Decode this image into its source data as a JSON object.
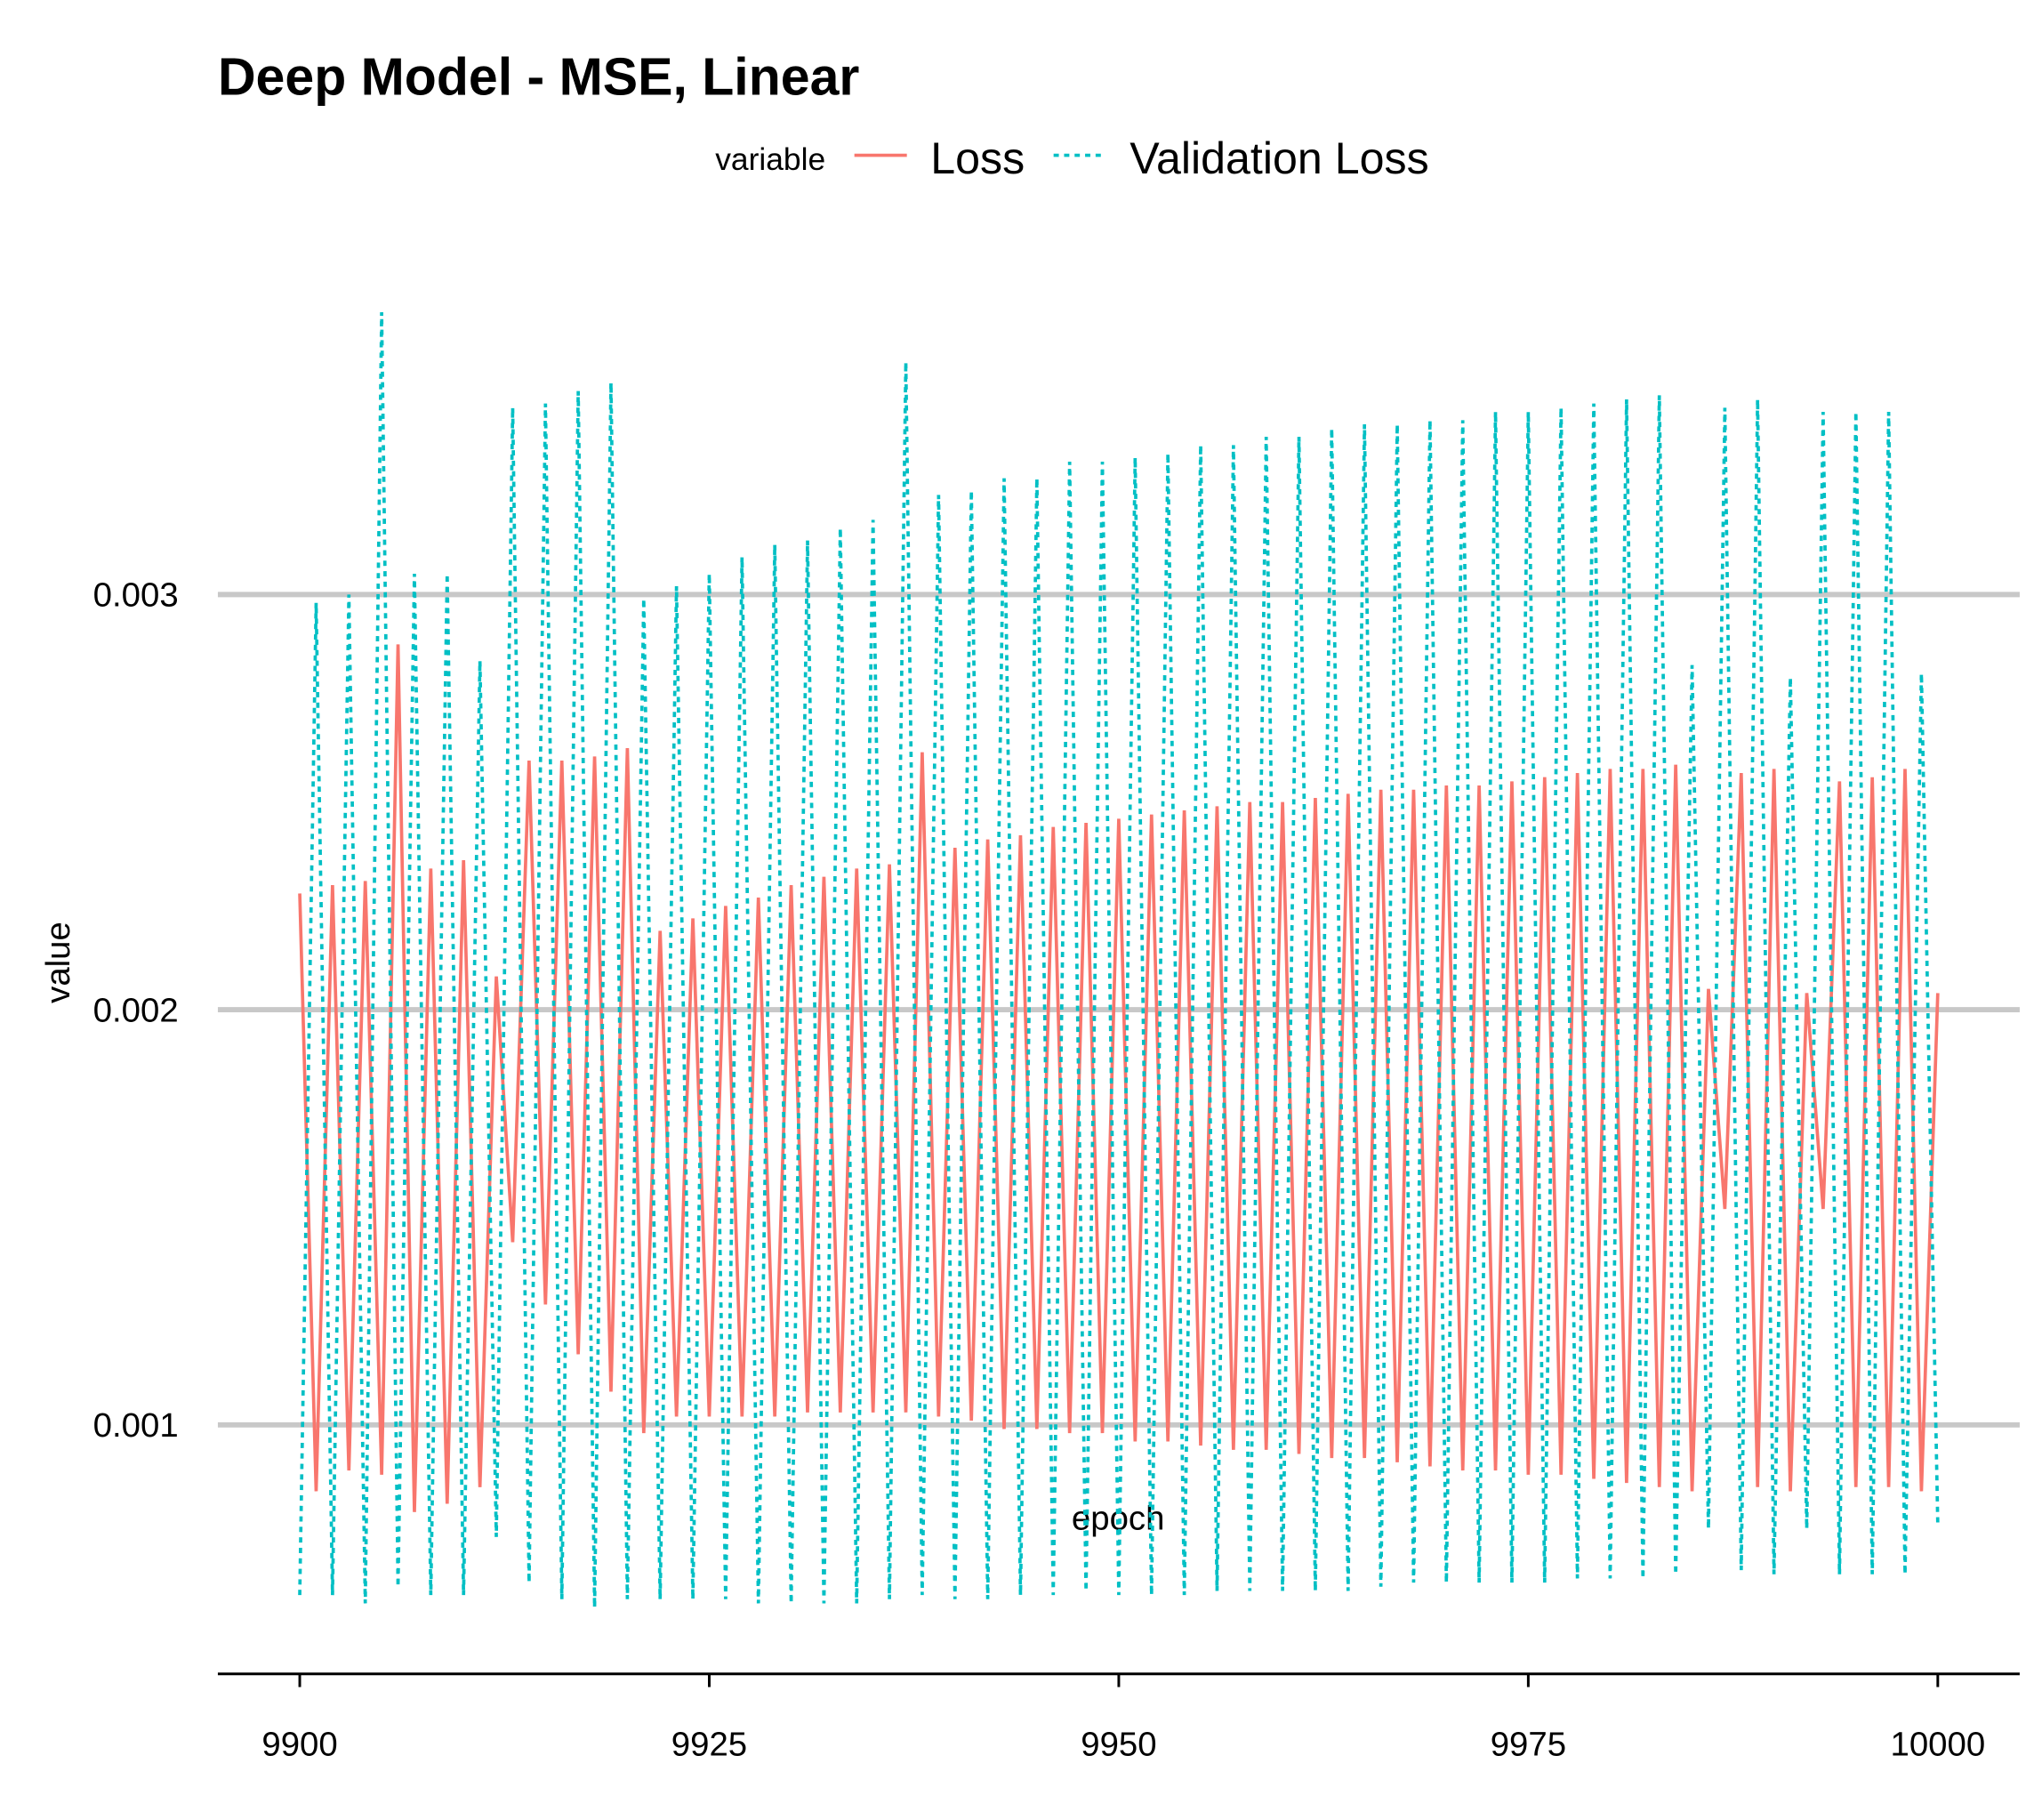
{
  "chart_data": {
    "type": "line",
    "title": "Deep Model - MSE, Linear",
    "legend_title": "variable",
    "x_label": "epoch",
    "y_label": "value",
    "x": [
      9900,
      9901,
      9902,
      9903,
      9904,
      9905,
      9906,
      9907,
      9908,
      9909,
      9910,
      9911,
      9912,
      9913,
      9914,
      9915,
      9916,
      9917,
      9918,
      9919,
      9920,
      9921,
      9922,
      9923,
      9924,
      9925,
      9926,
      9927,
      9928,
      9929,
      9930,
      9931,
      9932,
      9933,
      9934,
      9935,
      9936,
      9937,
      9938,
      9939,
      9940,
      9941,
      9942,
      9943,
      9944,
      9945,
      9946,
      9947,
      9948,
      9949,
      9950,
      9951,
      9952,
      9953,
      9954,
      9955,
      9956,
      9957,
      9958,
      9959,
      9960,
      9961,
      9962,
      9963,
      9964,
      9965,
      9966,
      9967,
      9968,
      9969,
      9970,
      9971,
      9972,
      9973,
      9974,
      9975,
      9976,
      9977,
      9978,
      9979,
      9980,
      9981,
      9982,
      9983,
      9984,
      9985,
      9986,
      9987,
      9988,
      9989,
      9990,
      9991,
      9992,
      9993,
      9994,
      9995,
      9996,
      9997,
      9998,
      9999,
      10000
    ],
    "series": [
      {
        "name": "Loss",
        "color": "#F8766D",
        "line_style": "solid",
        "values": [
          0.00228,
          0.00084,
          0.0023,
          0.00089,
          0.00231,
          0.00088,
          0.00288,
          0.00079,
          0.00234,
          0.00081,
          0.00236,
          0.00085,
          0.00208,
          0.00144,
          0.0026,
          0.00129,
          0.0026,
          0.00117,
          0.00261,
          0.00108,
          0.00263,
          0.00098,
          0.00219,
          0.00102,
          0.00222,
          0.00102,
          0.00225,
          0.00102,
          0.00227,
          0.00102,
          0.0023,
          0.00103,
          0.00232,
          0.00103,
          0.00234,
          0.00103,
          0.00235,
          0.00103,
          0.00262,
          0.00102,
          0.00239,
          0.00101,
          0.00241,
          0.00099,
          0.00242,
          0.00099,
          0.00244,
          0.00098,
          0.00245,
          0.00098,
          0.00246,
          0.00096,
          0.00247,
          0.00096,
          0.00248,
          0.00095,
          0.00249,
          0.00094,
          0.0025,
          0.00094,
          0.0025,
          0.00093,
          0.00251,
          0.00092,
          0.00252,
          0.00092,
          0.00253,
          0.00091,
          0.00253,
          0.0009,
          0.00254,
          0.00089,
          0.00254,
          0.00089,
          0.00255,
          0.00088,
          0.00256,
          0.00088,
          0.00257,
          0.00087,
          0.00258,
          0.00086,
          0.00258,
          0.00085,
          0.00259,
          0.00084,
          0.00205,
          0.00152,
          0.00257,
          0.00085,
          0.00258,
          0.00084,
          0.00204,
          0.00152,
          0.00255,
          0.00085,
          0.00256,
          0.00085,
          0.00258,
          0.00084,
          0.00204
        ]
      },
      {
        "name": "Validation Loss",
        "color": "#00BFC4",
        "line_style": "dashed",
        "values": [
          0.00059,
          0.00298,
          0.00059,
          0.003,
          0.00057,
          0.00368,
          0.00061,
          0.00305,
          0.00059,
          0.00305,
          0.00059,
          0.00284,
          0.00073,
          0.00345,
          0.00062,
          0.00346,
          0.00058,
          0.00349,
          0.00056,
          0.00351,
          0.00058,
          0.00299,
          0.00058,
          0.00302,
          0.00058,
          0.00305,
          0.00058,
          0.00309,
          0.00057,
          0.00312,
          0.00057,
          0.00313,
          0.00057,
          0.00316,
          0.00057,
          0.00318,
          0.00058,
          0.00356,
          0.00059,
          0.00324,
          0.00058,
          0.00325,
          0.00058,
          0.00328,
          0.00059,
          0.00328,
          0.00059,
          0.00332,
          0.0006,
          0.00332,
          0.00059,
          0.00333,
          0.00059,
          0.00334,
          0.00059,
          0.00336,
          0.0006,
          0.00336,
          0.0006,
          0.00338,
          0.0006,
          0.00338,
          0.0006,
          0.0034,
          0.0006,
          0.00341,
          0.00061,
          0.00341,
          0.00062,
          0.00342,
          0.00062,
          0.00342,
          0.00062,
          0.00344,
          0.00062,
          0.00344,
          0.00062,
          0.00345,
          0.00063,
          0.00346,
          0.00063,
          0.00347,
          0.00063,
          0.00348,
          0.00064,
          0.00283,
          0.00075,
          0.00345,
          0.00065,
          0.00347,
          0.00064,
          0.0028,
          0.00075,
          0.00344,
          0.00064,
          0.00344,
          0.00064,
          0.00344,
          0.00064,
          0.00281,
          0.00076
        ]
      }
    ],
    "xlim": [
      9895,
      10005
    ],
    "ylim": [
      0.0004,
      0.00384
    ],
    "xticks": [
      9900,
      9925,
      9950,
      9975,
      10000
    ],
    "yticks": [
      0.001,
      0.002,
      0.003
    ],
    "grid": true
  }
}
